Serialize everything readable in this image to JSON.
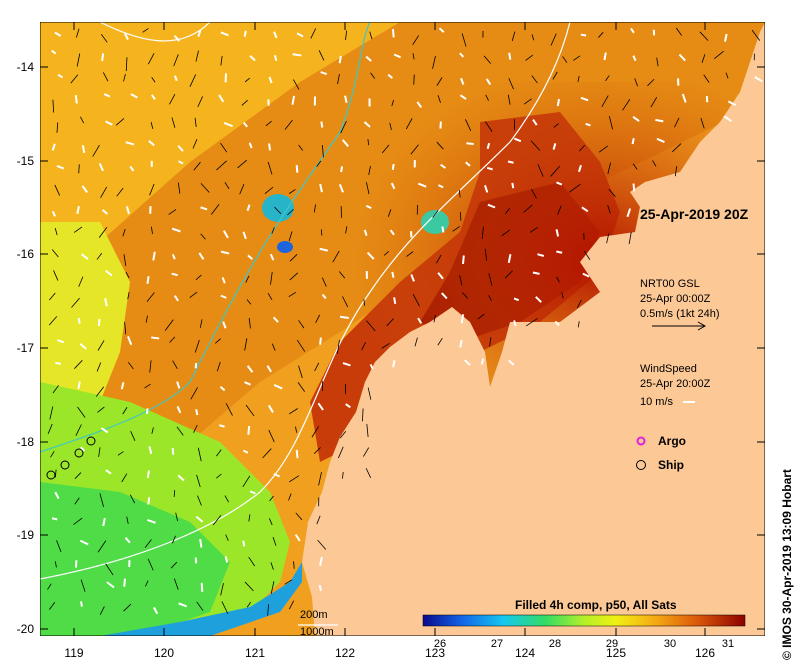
{
  "map": {
    "date_label": "25-Apr-2019 20Z",
    "currents": {
      "title": "NRT00 GSL",
      "time": "25-Apr 00:00Z",
      "scale": "0.5m/s (1kt 24h)"
    },
    "wind": {
      "title": "WindSpeed",
      "time": "25-Apr 20:00Z",
      "scale": "10 m/s"
    },
    "legend": {
      "argo": "Argo",
      "ship": "Ship"
    },
    "isobaths": [
      "200m",
      "1000m"
    ],
    "colorbar": {
      "title": "Filled 4h comp, p50, All Sats",
      "ticks": [
        "26",
        "27",
        "28",
        "29",
        "30",
        "31"
      ],
      "range": [
        26,
        31.6
      ]
    },
    "credit": "© IMOS 30-Apr-2019 13:09 Hobart",
    "lat_ticks": [
      "-14",
      "-15",
      "-16",
      "-17",
      "-18",
      "-19",
      "-20"
    ],
    "lon_ticks": [
      "119",
      "120",
      "121",
      "122",
      "123",
      "124",
      "125",
      "126"
    ],
    "colors": {
      "land": "#fcc896",
      "isobath_200": "#ffffff",
      "isobath_1000": "#3cc8c8",
      "argo": "#e020e0"
    }
  }
}
